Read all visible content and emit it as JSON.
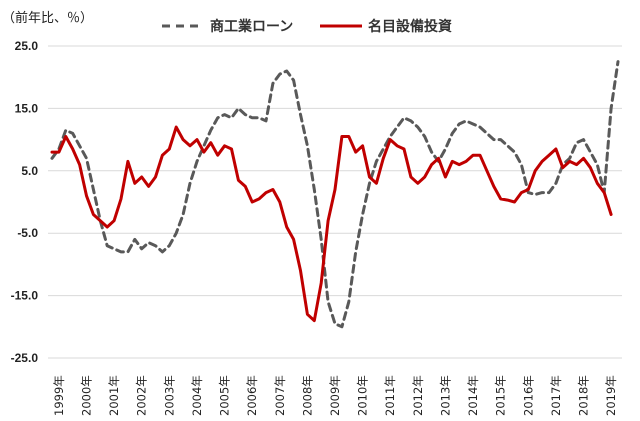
{
  "chart_data": {
    "type": "line",
    "unit_label": "（前年比、％）",
    "ylim": [
      -25,
      25
    ],
    "yticks": [
      "25.0",
      "15.0",
      "5.0",
      "-5.0",
      "-15.0",
      "-25.0"
    ],
    "ytick_values": [
      25,
      15,
      5,
      -5,
      -15,
      -25
    ],
    "grid": "horizontal",
    "legend_position": "top",
    "xticks": [
      "1999年",
      "2000年",
      "2001年",
      "2002年",
      "2003年",
      "2004年",
      "2005年",
      "2006年",
      "2007年",
      "2008年",
      "2009年",
      "2010年",
      "2011年",
      "2012年",
      "2013年",
      "2014年",
      "2015年",
      "2016年",
      "2017年",
      "2018年",
      "2019年"
    ],
    "x_start_year": 1999,
    "series": [
      {
        "name": "商工業ローン",
        "color": "#595959",
        "style": "dashed",
        "values": [
          7,
          8.5,
          11.5,
          11,
          9,
          7,
          2,
          -3,
          -7,
          -7.5,
          -8,
          -8,
          -6,
          -7.5,
          -6.5,
          -7,
          -8,
          -7,
          -5,
          -2,
          3,
          6.5,
          9,
          11.5,
          13.5,
          14,
          13.5,
          15,
          14,
          13.5,
          13.5,
          13,
          19,
          20.5,
          21,
          19.5,
          14,
          9,
          2,
          -6,
          -16,
          -19.5,
          -20,
          -16,
          -8,
          -2,
          3,
          6.5,
          8.5,
          10.5,
          12,
          13.5,
          13,
          12,
          10.5,
          8,
          6.5,
          8.5,
          11,
          12.5,
          13,
          12.5,
          12,
          11,
          10,
          10,
          9,
          8,
          6,
          1.5,
          1.2,
          1.5,
          1.5,
          3,
          6,
          7,
          9.5,
          10,
          8,
          6,
          1.5,
          15,
          22.5
        ]
      },
      {
        "name": "名目設備投資",
        "color": "#c00000",
        "style": "solid",
        "values": [
          8,
          8,
          10.5,
          8.5,
          6,
          1,
          -2,
          -3,
          -4,
          -3,
          0.5,
          6.5,
          3,
          4,
          2.5,
          4,
          7.5,
          8.5,
          12,
          10,
          9,
          10,
          8,
          9.5,
          7.5,
          9,
          8.5,
          3.5,
          2.5,
          0,
          0.5,
          1.5,
          2,
          0,
          -4,
          -6,
          -11,
          -18,
          -19,
          -13,
          -3,
          2,
          10.5,
          10.5,
          8,
          9,
          4,
          3,
          7,
          10,
          9,
          8.5,
          4,
          3,
          4,
          6,
          7,
          4,
          6.5,
          6,
          6.5,
          7.5,
          7.5,
          5,
          2.5,
          0.5,
          0.3,
          0,
          1.5,
          2,
          5,
          6.5,
          7.5,
          8.5,
          5.5,
          6.5,
          6,
          7,
          5.5,
          3,
          1.5,
          -2
        ]
      }
    ]
  }
}
